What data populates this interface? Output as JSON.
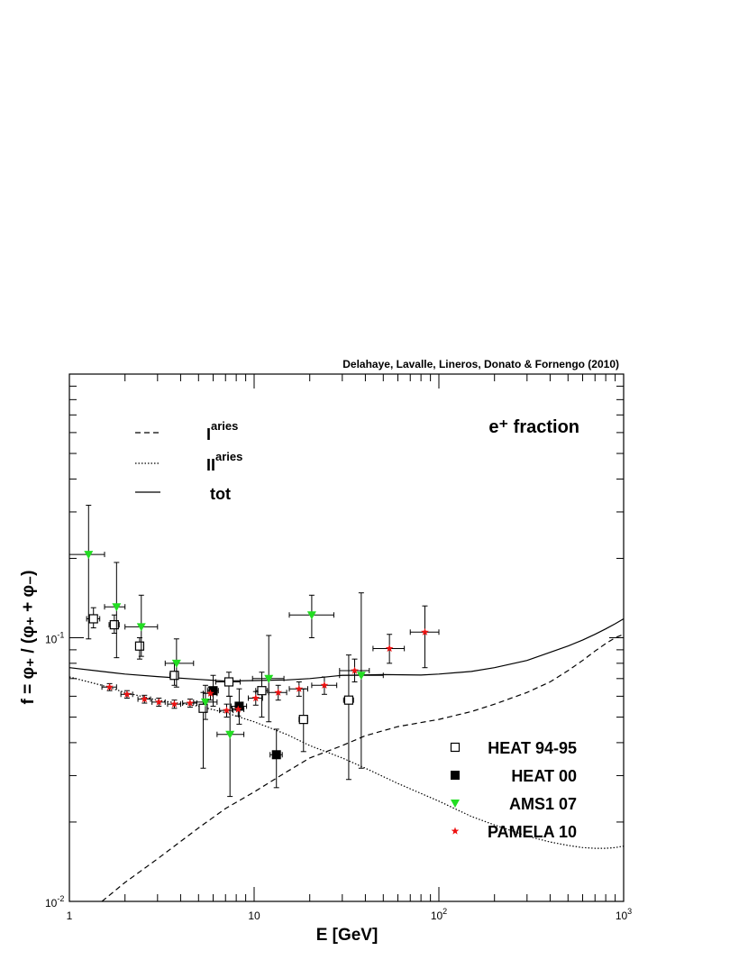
{
  "chart_data": {
    "type": "scatter",
    "credit": "Delahaye, Lavalle, Lineros, Donato & Fornengo (2010)",
    "annotation": "e⁺ fraction",
    "xlabel": "E [GeV]",
    "ylabel": "f = φ₊ / (φ₊ + φ₋)",
    "xscale": "log",
    "yscale": "log",
    "xlim": [
      1,
      1000
    ],
    "ylim": [
      0.01,
      1
    ],
    "x_tick_labels": [
      {
        "x": 1,
        "text": "1"
      },
      {
        "x": 10,
        "text": "10"
      },
      {
        "x": 100,
        "text": "10",
        "exp": "2"
      },
      {
        "x": 1000,
        "text": "10",
        "exp": "3"
      }
    ],
    "y_tick_labels": [
      {
        "y": 0.01,
        "text": "10",
        "exp": "-2"
      },
      {
        "y": 0.1,
        "text": "10",
        "exp": "-1"
      }
    ],
    "legend_top": [
      {
        "key": "primaries",
        "label": "I",
        "sup": "aries",
        "style": "dashed"
      },
      {
        "key": "secondaries",
        "label": "II",
        "sup": "aries",
        "style": "dotted"
      },
      {
        "key": "total",
        "label": "tot",
        "style": "solid"
      }
    ],
    "lines": [
      {
        "name": "primaries",
        "style": "dashed",
        "points": [
          [
            1.5,
            0.01
          ],
          [
            2,
            0.0118
          ],
          [
            3,
            0.0145
          ],
          [
            5,
            0.019
          ],
          [
            7,
            0.0225
          ],
          [
            10,
            0.026
          ],
          [
            15,
            0.031
          ],
          [
            20,
            0.035
          ],
          [
            30,
            0.039
          ],
          [
            40,
            0.0425
          ],
          [
            60,
            0.046
          ],
          [
            100,
            0.049
          ],
          [
            150,
            0.0525
          ],
          [
            200,
            0.056
          ],
          [
            300,
            0.062
          ],
          [
            400,
            0.068
          ],
          [
            500,
            0.075
          ],
          [
            600,
            0.082
          ],
          [
            700,
            0.089
          ],
          [
            800,
            0.095
          ],
          [
            900,
            0.1
          ],
          [
            1000,
            0.103
          ]
        ]
      },
      {
        "name": "secondaries",
        "style": "dotted",
        "points": [
          [
            1,
            0.071
          ],
          [
            1.5,
            0.066
          ],
          [
            2,
            0.062
          ],
          [
            3,
            0.058
          ],
          [
            5,
            0.055
          ],
          [
            7,
            0.052
          ],
          [
            10,
            0.048
          ],
          [
            15,
            0.043
          ],
          [
            20,
            0.039
          ],
          [
            30,
            0.035
          ],
          [
            40,
            0.032
          ],
          [
            60,
            0.028
          ],
          [
            100,
            0.024
          ],
          [
            150,
            0.021
          ],
          [
            200,
            0.0195
          ],
          [
            300,
            0.0177
          ],
          [
            400,
            0.0168
          ],
          [
            500,
            0.0163
          ],
          [
            600,
            0.016
          ],
          [
            700,
            0.0159
          ],
          [
            800,
            0.0159
          ],
          [
            900,
            0.016
          ],
          [
            1000,
            0.0162
          ]
        ]
      },
      {
        "name": "total",
        "style": "solid",
        "points": [
          [
            1,
            0.077
          ],
          [
            1.5,
            0.0745
          ],
          [
            2,
            0.0728
          ],
          [
            3,
            0.0712
          ],
          [
            5,
            0.0695
          ],
          [
            7,
            0.0685
          ],
          [
            10,
            0.0688
          ],
          [
            15,
            0.0692
          ],
          [
            20,
            0.07
          ],
          [
            30,
            0.072
          ],
          [
            50,
            0.0725
          ],
          [
            80,
            0.0722
          ],
          [
            100,
            0.0728
          ],
          [
            150,
            0.0745
          ],
          [
            200,
            0.077
          ],
          [
            300,
            0.082
          ],
          [
            400,
            0.088
          ],
          [
            500,
            0.093
          ],
          [
            600,
            0.098
          ],
          [
            700,
            0.103
          ],
          [
            800,
            0.108
          ],
          [
            900,
            0.113
          ],
          [
            1000,
            0.118
          ]
        ]
      }
    ],
    "series": [
      {
        "name": "HEAT 94-95",
        "marker": "open-square",
        "color": "#000000",
        "points": [
          {
            "x": 1.35,
            "y": 0.118,
            "xlo": 1.24,
            "xhi": 1.46,
            "ylo": 0.109,
            "yhi": 0.13
          },
          {
            "x": 1.75,
            "y": 0.112,
            "xlo": 1.64,
            "xhi": 1.86,
            "ylo": 0.104,
            "yhi": 0.122
          },
          {
            "x": 2.4,
            "y": 0.093,
            "xlo": 2.3,
            "xhi": 2.5,
            "ylo": 0.083,
            "yhi": 0.1
          },
          {
            "x": 3.7,
            "y": 0.072,
            "xlo": 3.5,
            "xhi": 3.9,
            "ylo": 0.066,
            "yhi": 0.08
          },
          {
            "x": 5.3,
            "y": 0.054,
            "xlo": 5.1,
            "xhi": 5.5,
            "ylo": 0.032,
            "yhi": 0.062
          },
          {
            "x": 7.3,
            "y": 0.068,
            "xlo": 6.2,
            "xhi": 8.4,
            "ylo": 0.06,
            "yhi": 0.074
          },
          {
            "x": 11,
            "y": 0.063,
            "xlo": 10.2,
            "xhi": 11.8,
            "ylo": 0.05,
            "yhi": 0.074
          },
          {
            "x": 18.5,
            "y": 0.049,
            "xlo": 17.5,
            "xhi": 19.5,
            "ylo": 0.037,
            "yhi": 0.064
          },
          {
            "x": 32.5,
            "y": 0.058,
            "xlo": 30.5,
            "xhi": 34.5,
            "ylo": 0.029,
            "yhi": 0.086
          }
        ]
      },
      {
        "name": "HEAT 00",
        "marker": "filled-square",
        "color": "#000000",
        "points": [
          {
            "x": 6.0,
            "y": 0.063,
            "xlo": 5.6,
            "xhi": 6.4,
            "ylo": 0.055,
            "yhi": 0.072
          },
          {
            "x": 8.3,
            "y": 0.055,
            "xlo": 7.5,
            "xhi": 9.1,
            "ylo": 0.047,
            "yhi": 0.064
          },
          {
            "x": 13.2,
            "y": 0.036,
            "xlo": 12.2,
            "xhi": 14.2,
            "ylo": 0.027,
            "yhi": 0.045
          }
        ]
      },
      {
        "name": "AMS1 07",
        "marker": "down-triangle",
        "color": "#22dd22",
        "points": [
          {
            "x": 1.27,
            "y": 0.207,
            "xlo": 1.0,
            "xhi": 1.55,
            "ylo": 0.099,
            "yhi": 0.318
          },
          {
            "x": 1.8,
            "y": 0.131,
            "xlo": 1.55,
            "xhi": 2.0,
            "ylo": 0.084,
            "yhi": 0.193
          },
          {
            "x": 2.45,
            "y": 0.11,
            "xlo": 2.0,
            "xhi": 3.0,
            "ylo": 0.085,
            "yhi": 0.145
          },
          {
            "x": 3.8,
            "y": 0.08,
            "xlo": 3.3,
            "xhi": 4.7,
            "ylo": 0.065,
            "yhi": 0.099
          },
          {
            "x": 5.45,
            "y": 0.057,
            "xlo": 4.7,
            "xhi": 6.3,
            "ylo": 0.049,
            "yhi": 0.066
          },
          {
            "x": 7.4,
            "y": 0.043,
            "xlo": 6.3,
            "xhi": 8.8,
            "ylo": 0.025,
            "yhi": 0.06
          },
          {
            "x": 12,
            "y": 0.07,
            "xlo": 9.8,
            "xhi": 14.5,
            "ylo": 0.048,
            "yhi": 0.102
          },
          {
            "x": 20.5,
            "y": 0.122,
            "xlo": 15.5,
            "xhi": 27,
            "ylo": 0.1,
            "yhi": 0.145
          },
          {
            "x": 38,
            "y": 0.072,
            "xlo": 29,
            "xhi": 50,
            "ylo": 0.032,
            "yhi": 0.148
          }
        ]
      },
      {
        "name": "PAMELA 10",
        "marker": "star",
        "color": "#ee1111",
        "points": [
          {
            "x": 1.65,
            "y": 0.065,
            "xlo": 1.5,
            "xhi": 1.8,
            "ylo": 0.063,
            "yhi": 0.067
          },
          {
            "x": 2.05,
            "y": 0.061,
            "xlo": 1.9,
            "xhi": 2.2,
            "ylo": 0.059,
            "yhi": 0.063
          },
          {
            "x": 2.55,
            "y": 0.0585,
            "xlo": 2.35,
            "xhi": 2.75,
            "ylo": 0.0565,
            "yhi": 0.0605
          },
          {
            "x": 3.05,
            "y": 0.057,
            "xlo": 2.8,
            "xhi": 3.3,
            "ylo": 0.055,
            "yhi": 0.059
          },
          {
            "x": 3.7,
            "y": 0.056,
            "xlo": 3.4,
            "xhi": 4.0,
            "ylo": 0.054,
            "yhi": 0.058
          },
          {
            "x": 4.5,
            "y": 0.0565,
            "xlo": 4.1,
            "xhi": 4.9,
            "ylo": 0.0545,
            "yhi": 0.0585
          },
          {
            "x": 5.8,
            "y": 0.0615,
            "xlo": 5.3,
            "xhi": 6.3,
            "ylo": 0.058,
            "yhi": 0.065
          },
          {
            "x": 7.1,
            "y": 0.053,
            "xlo": 6.5,
            "xhi": 7.7,
            "ylo": 0.05,
            "yhi": 0.056
          },
          {
            "x": 8.2,
            "y": 0.0535,
            "xlo": 7.6,
            "xhi": 8.8,
            "ylo": 0.0505,
            "yhi": 0.0565
          },
          {
            "x": 10.2,
            "y": 0.059,
            "xlo": 9.3,
            "xhi": 11.1,
            "ylo": 0.0555,
            "yhi": 0.0625
          },
          {
            "x": 13.5,
            "y": 0.062,
            "xlo": 12.0,
            "xhi": 15.0,
            "ylo": 0.058,
            "yhi": 0.066
          },
          {
            "x": 17.5,
            "y": 0.064,
            "xlo": 15.5,
            "xhi": 19.5,
            "ylo": 0.06,
            "yhi": 0.068
          },
          {
            "x": 24,
            "y": 0.066,
            "xlo": 20.5,
            "xhi": 28,
            "ylo": 0.061,
            "yhi": 0.071
          },
          {
            "x": 35,
            "y": 0.075,
            "xlo": 29,
            "xhi": 42,
            "ylo": 0.068,
            "yhi": 0.083
          },
          {
            "x": 54,
            "y": 0.091,
            "xlo": 44,
            "xhi": 65,
            "ylo": 0.08,
            "yhi": 0.103
          },
          {
            "x": 84,
            "y": 0.105,
            "xlo": 70,
            "xhi": 100,
            "ylo": 0.077,
            "yhi": 0.132
          }
        ]
      }
    ]
  }
}
